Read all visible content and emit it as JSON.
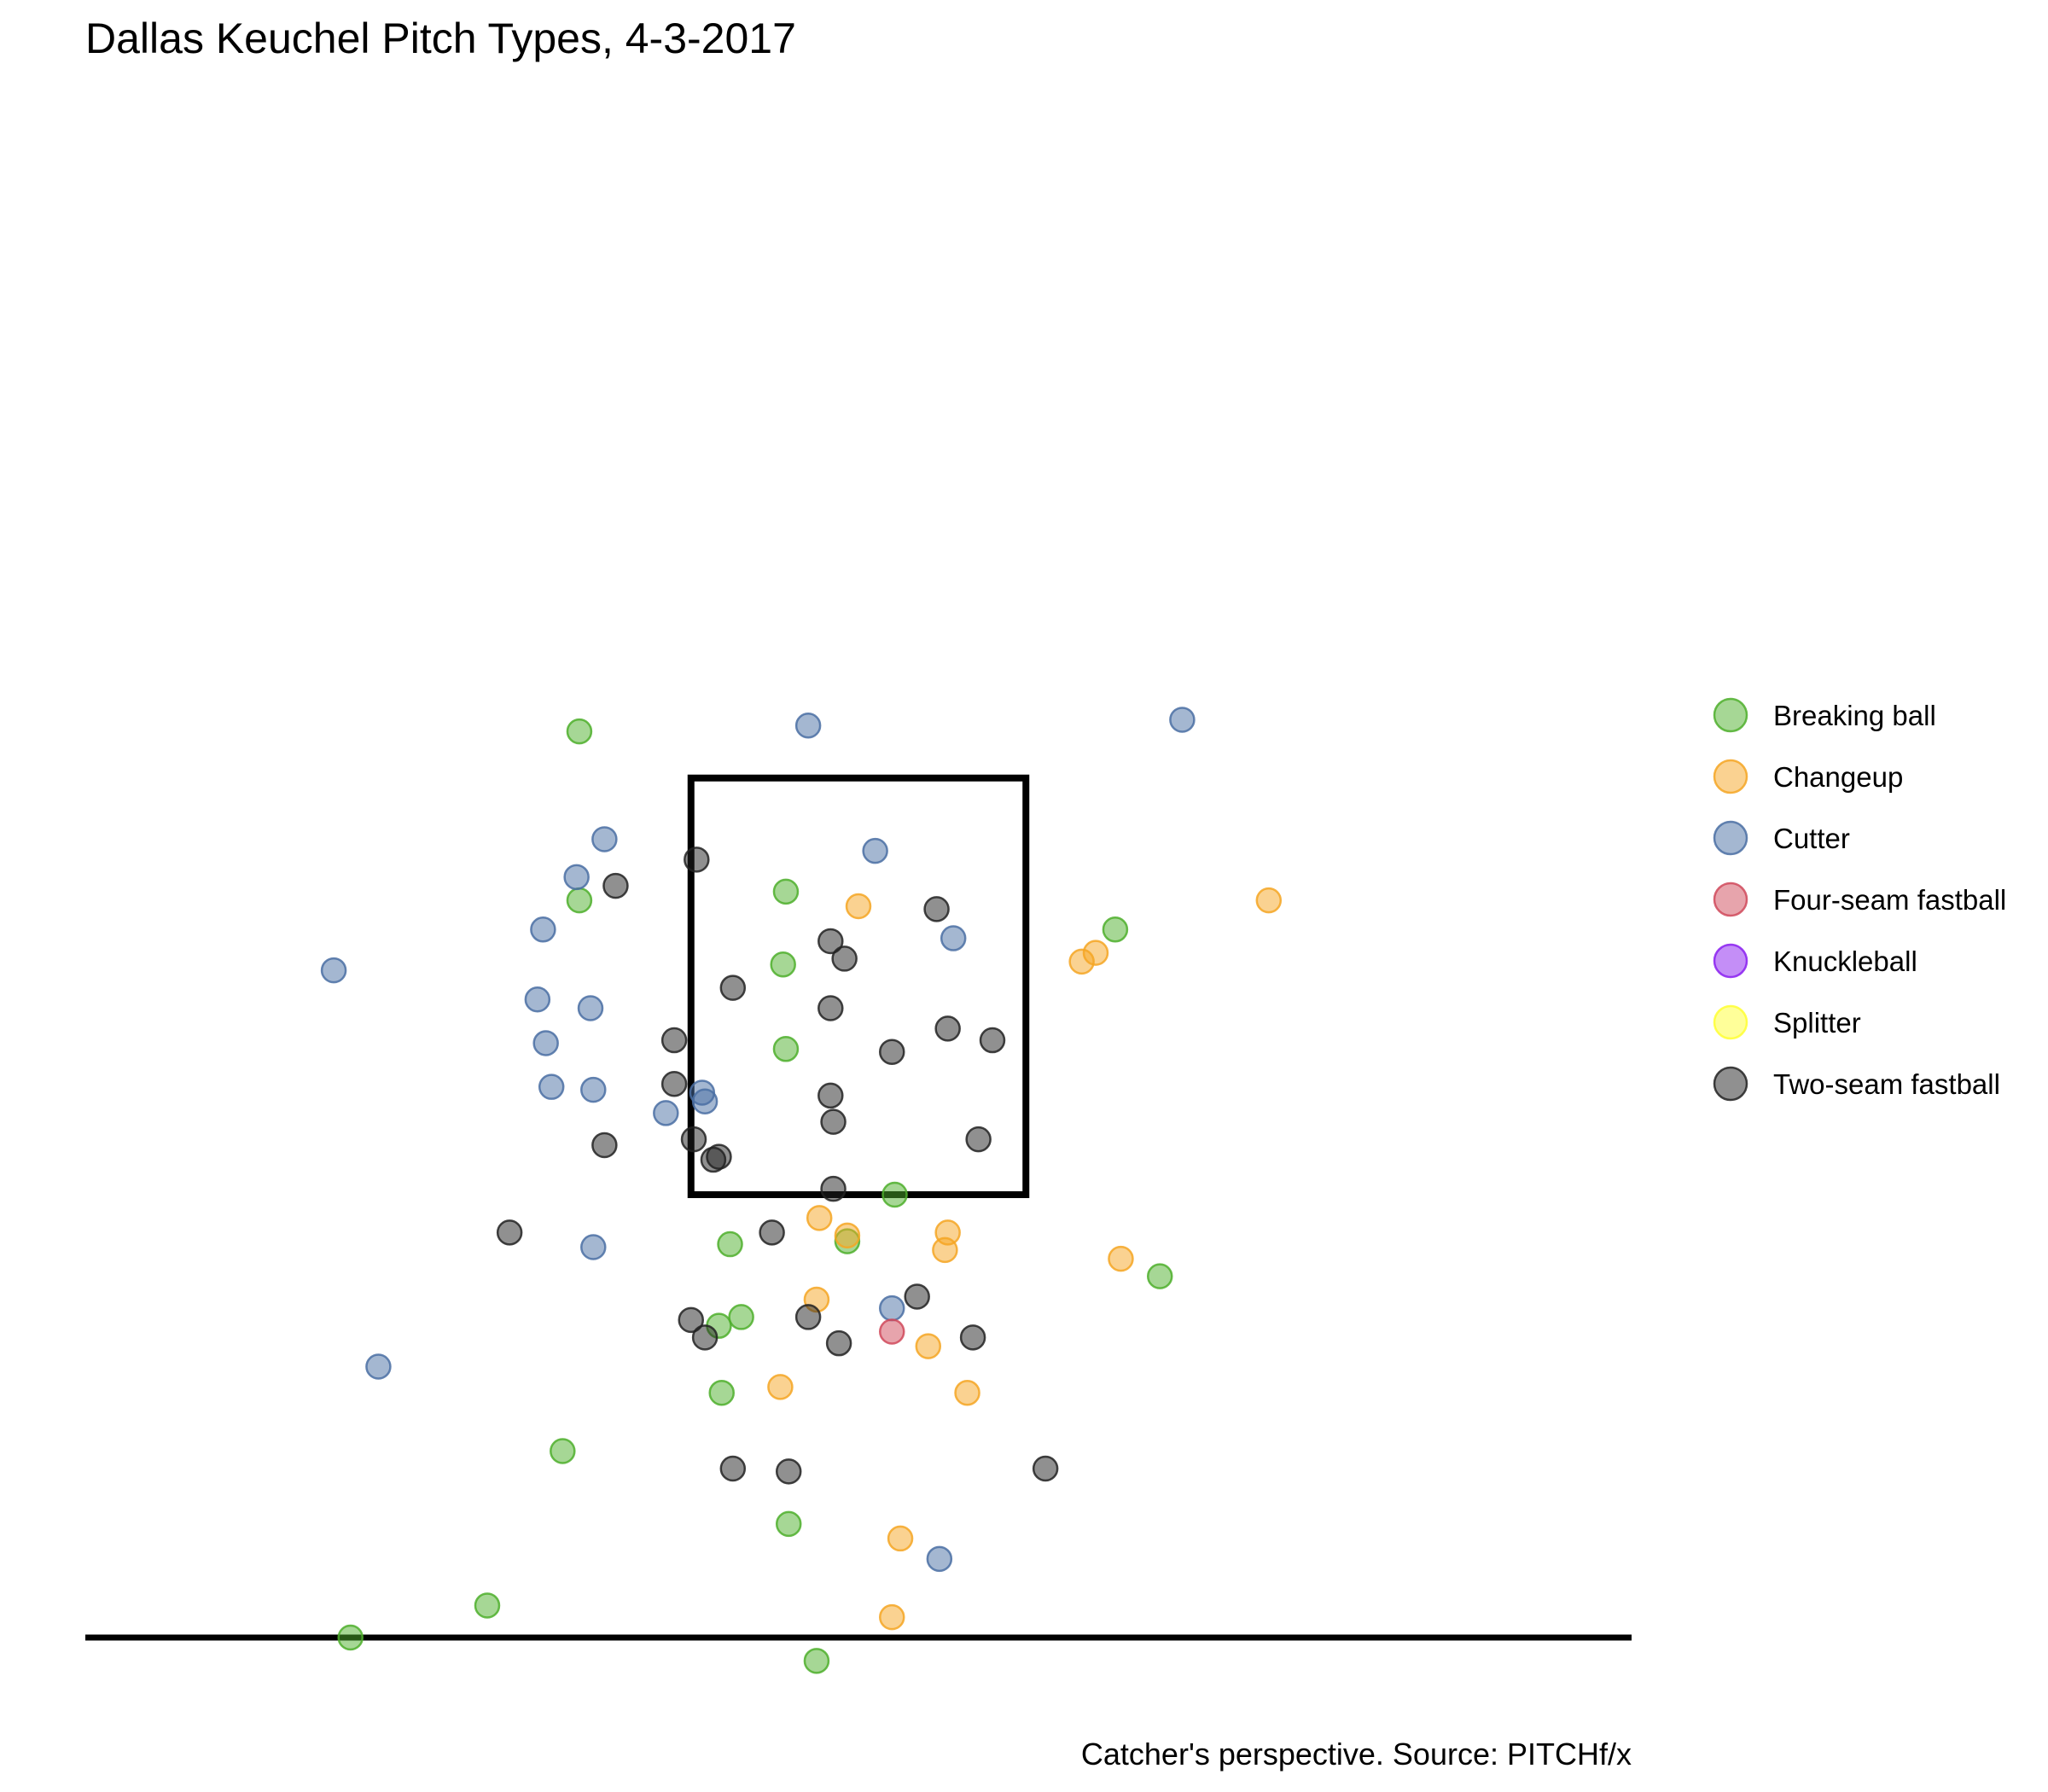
{
  "chart_data": {
    "type": "scatter",
    "title": "Dallas Keuchel Pitch Types, 4-3-2017",
    "caption": "Catcher's perspective. Source: PITCHf/x",
    "xlabel": "",
    "ylabel": "",
    "xlim": [
      -2.77,
      2.77
    ],
    "ylim": [
      -0.12,
      5.38
    ],
    "grid": false,
    "legend_position": "right",
    "strike_zone": {
      "left": -0.6,
      "right": 0.6,
      "bottom": 1.52,
      "top": 2.95
    },
    "ground_y": 0,
    "series": [
      {
        "name": "Breaking ball",
        "color": "#4daf2c",
        "points": [
          [
            -1.0,
            3.11
          ],
          [
            -0.27,
            2.31
          ],
          [
            -0.26,
            2.02
          ],
          [
            -0.26,
            2.56
          ],
          [
            0.13,
            1.52
          ],
          [
            0.92,
            2.43
          ],
          [
            -1.0,
            2.53
          ],
          [
            -0.46,
            1.35
          ],
          [
            -0.04,
            1.36
          ],
          [
            -0.5,
            1.07
          ],
          [
            -0.42,
            1.1
          ],
          [
            -0.49,
            0.84
          ],
          [
            -1.06,
            0.64
          ],
          [
            -1.33,
            0.11
          ],
          [
            -1.82,
            0.0
          ],
          [
            -0.25,
            0.39
          ],
          [
            -0.15,
            -0.08
          ],
          [
            1.08,
            1.24
          ]
        ]
      },
      {
        "name": "Changeup",
        "color": "#f5a623",
        "points": [
          [
            0.0,
            2.51
          ],
          [
            1.47,
            2.53
          ],
          [
            0.85,
            2.35
          ],
          [
            0.8,
            2.32
          ],
          [
            -0.14,
            1.44
          ],
          [
            -0.04,
            1.38
          ],
          [
            0.32,
            1.39
          ],
          [
            0.31,
            1.33
          ],
          [
            0.94,
            1.3
          ],
          [
            -0.15,
            1.16
          ],
          [
            0.25,
            1.0
          ],
          [
            0.39,
            0.84
          ],
          [
            -0.28,
            0.86
          ],
          [
            0.15,
            0.34
          ],
          [
            0.12,
            0.07
          ]
        ]
      },
      {
        "name": "Cutter",
        "color": "#4a6fa3",
        "points": [
          [
            -0.18,
            3.13
          ],
          [
            1.16,
            3.15
          ],
          [
            -0.91,
            2.74
          ],
          [
            -1.01,
            2.61
          ],
          [
            -1.13,
            2.43
          ],
          [
            -1.88,
            2.29
          ],
          [
            -1.15,
            2.19
          ],
          [
            -0.96,
            2.16
          ],
          [
            -1.12,
            2.04
          ],
          [
            -1.1,
            1.89
          ],
          [
            -0.95,
            1.88
          ],
          [
            -0.55,
            1.84
          ],
          [
            -0.69,
            1.8
          ],
          [
            -0.95,
            1.34
          ],
          [
            -1.72,
            0.93
          ],
          [
            0.06,
            2.7
          ],
          [
            0.34,
            2.4
          ],
          [
            0.12,
            1.13
          ],
          [
            0.29,
            0.27
          ],
          [
            -0.56,
            1.87
          ]
        ]
      },
      {
        "name": "Four-seam fastball",
        "color": "#d0495a",
        "points": [
          [
            0.12,
            1.05
          ]
        ]
      },
      {
        "name": "Knuckleball",
        "color": "#8a1ef0",
        "points": []
      },
      {
        "name": "Splitter",
        "color": "#ffff33",
        "points": []
      },
      {
        "name": "Two-seam fastball",
        "color": "#222222",
        "points": [
          [
            -0.58,
            2.67
          ],
          [
            -0.87,
            2.58
          ],
          [
            0.28,
            2.5
          ],
          [
            -0.1,
            2.39
          ],
          [
            -0.05,
            2.33
          ],
          [
            -0.45,
            2.23
          ],
          [
            -0.1,
            2.16
          ],
          [
            -0.66,
            2.05
          ],
          [
            -0.66,
            1.9
          ],
          [
            0.32,
            2.09
          ],
          [
            0.48,
            2.05
          ],
          [
            0.12,
            2.01
          ],
          [
            -0.1,
            1.86
          ],
          [
            -0.09,
            1.77
          ],
          [
            -0.59,
            1.71
          ],
          [
            -0.5,
            1.65
          ],
          [
            -0.52,
            1.64
          ],
          [
            -0.91,
            1.69
          ],
          [
            -1.25,
            1.39
          ],
          [
            0.43,
            1.71
          ],
          [
            -0.31,
            1.39
          ],
          [
            -0.09,
            1.54
          ],
          [
            -0.6,
            1.09
          ],
          [
            -0.18,
            1.1
          ],
          [
            0.21,
            1.17
          ],
          [
            -0.55,
            1.03
          ],
          [
            -0.07,
            1.01
          ],
          [
            0.41,
            1.03
          ],
          [
            -0.45,
            0.58
          ],
          [
            -0.25,
            0.57
          ],
          [
            0.67,
            0.58
          ]
        ]
      }
    ]
  }
}
